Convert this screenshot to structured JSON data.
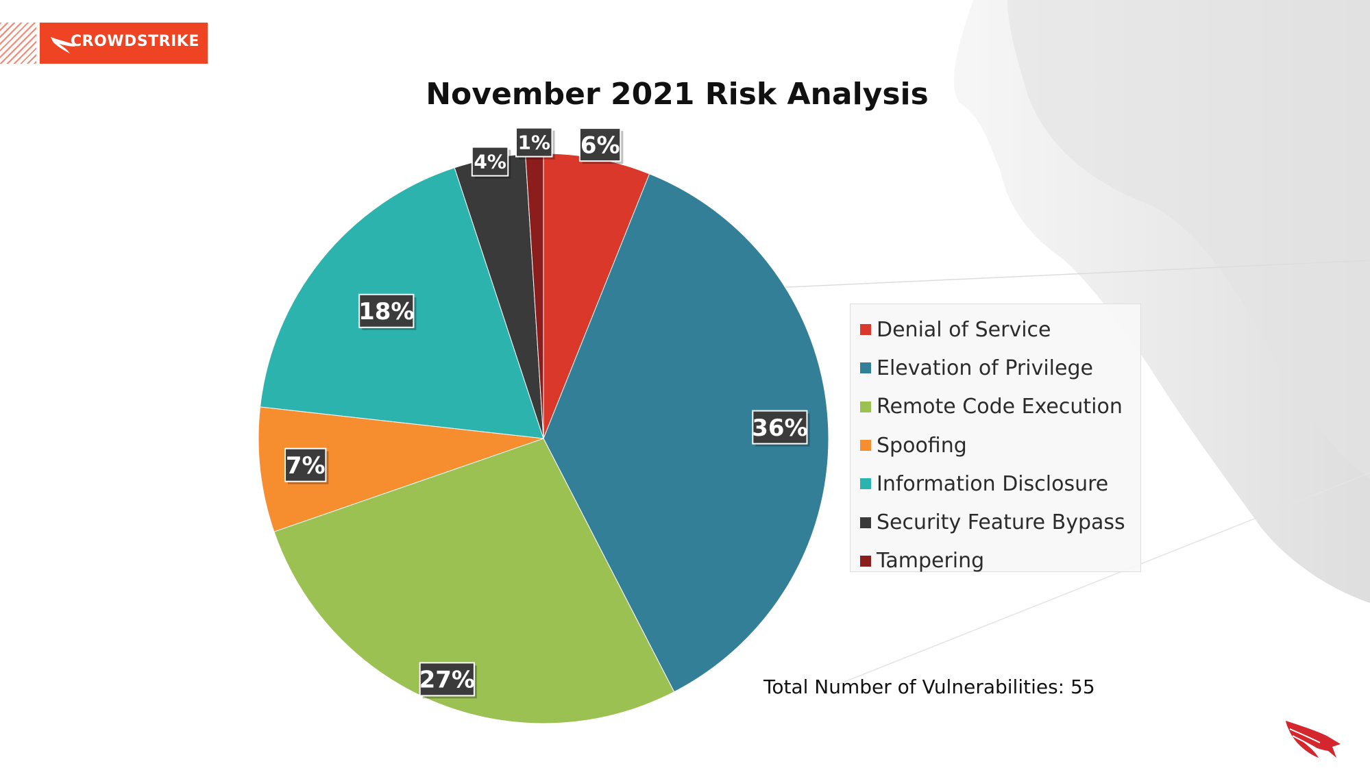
{
  "brand": {
    "logo_text": "CROWDSTRIKE",
    "logo_color": "#ef4423"
  },
  "chart_data": {
    "type": "pie",
    "title": "November 2021 Risk Analysis",
    "categories": [
      "Denial of Service",
      "Elevation of Privilege",
      "Remote Code Execution",
      "Spoofing",
      "Information Disclosure",
      "Security Feature Bypass",
      "Tampering"
    ],
    "values": [
      6,
      36,
      27,
      7,
      18,
      4,
      1
    ],
    "data_labels": [
      "6%",
      "36%",
      "27%",
      "7%",
      "18%",
      "4%",
      "1%"
    ],
    "colors": [
      "#d9382b",
      "#337f98",
      "#9bc153",
      "#f68e30",
      "#2db3ae",
      "#3a3a3a",
      "#8b1d1d"
    ],
    "value_unit": "percent",
    "legend_position": "right",
    "start_angle_deg": 0,
    "direction": "clockwise"
  },
  "legend": {
    "items": [
      {
        "label": "Denial of Service",
        "color": "#d9382b"
      },
      {
        "label": "Elevation of Privilege",
        "color": "#337f98"
      },
      {
        "label": "Remote Code Execution",
        "color": "#9bc153"
      },
      {
        "label": "Spoofing",
        "color": "#f68e30"
      },
      {
        "label": "Information Disclosure",
        "color": "#2db3ae"
      },
      {
        "label": "Security Feature Bypass",
        "color": "#3a3a3a"
      },
      {
        "label": "Tampering",
        "color": "#8b1d1d"
      }
    ]
  },
  "footer": {
    "total_note": "Total Number of Vulnerabilities: 55"
  },
  "icons": {
    "logo": "falcon-logo-icon",
    "corner": "falcon-icon"
  }
}
